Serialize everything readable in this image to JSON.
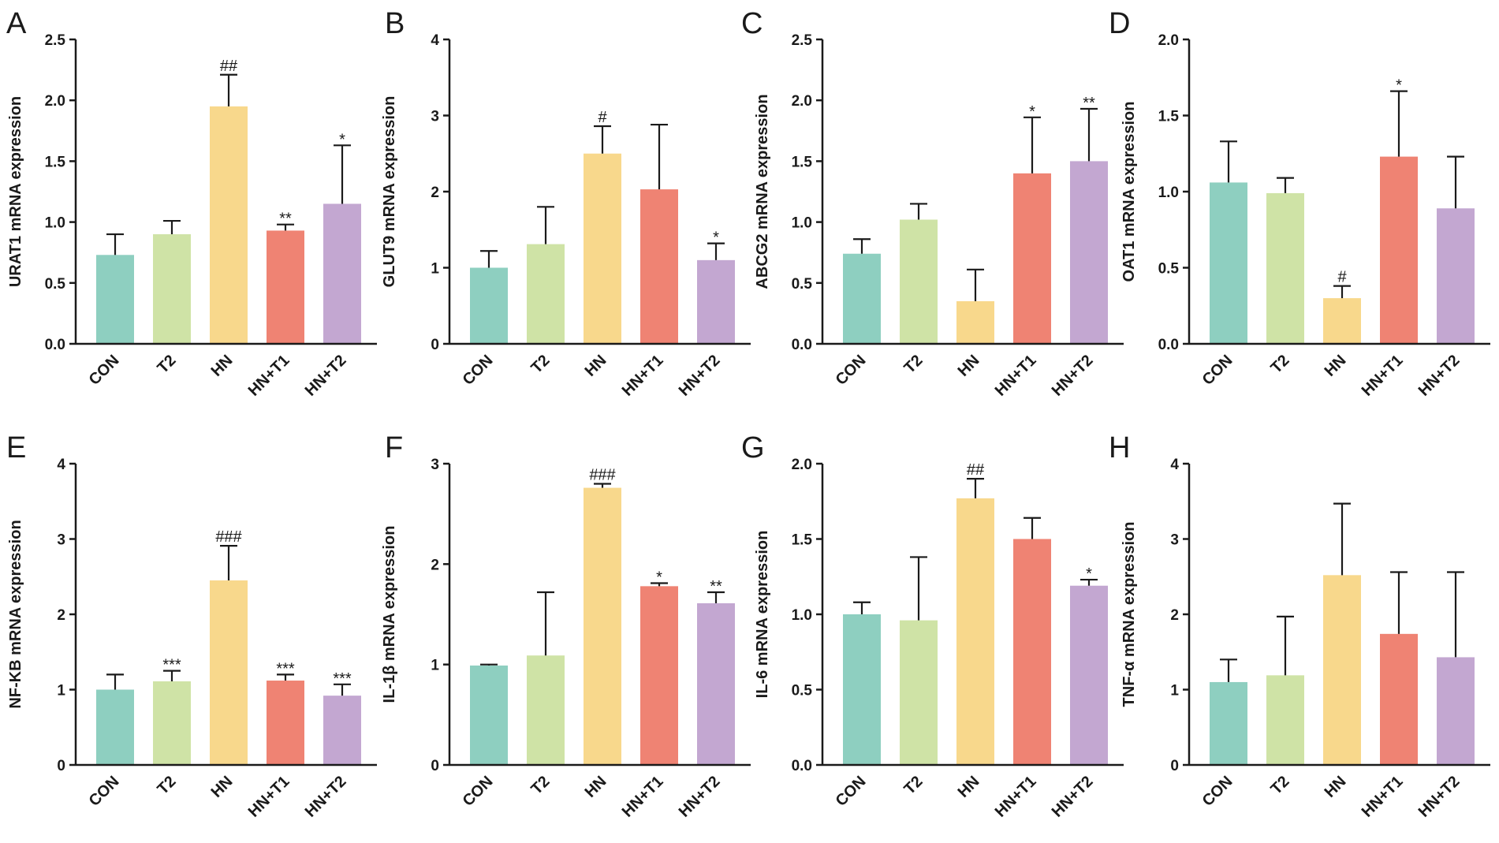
{
  "chart_data": [
    {
      "panel": "A",
      "type": "bar",
      "ylabel": "URAT1 mRNA expression",
      "categories": [
        "CON",
        "T2",
        "HN",
        "HN+T1",
        "HN+T2"
      ],
      "values": [
        0.73,
        0.9,
        1.95,
        0.93,
        1.15
      ],
      "errors": [
        0.17,
        0.11,
        0.26,
        0.05,
        0.48
      ],
      "annotations": [
        "",
        "",
        "##",
        "**",
        "*"
      ],
      "ylim": [
        0,
        2.5
      ],
      "yticks": [
        "0.0",
        "0.5",
        "1.0",
        "1.5",
        "2.0",
        "2.5"
      ]
    },
    {
      "panel": "B",
      "type": "bar",
      "ylabel": "GLUT9 mRNA expression",
      "categories": [
        "CON",
        "T2",
        "HN",
        "HN+T1",
        "HN+T2"
      ],
      "values": [
        1.0,
        1.31,
        2.5,
        2.03,
        1.1
      ],
      "errors": [
        0.22,
        0.49,
        0.36,
        0.85,
        0.22
      ],
      "annotations": [
        "",
        "",
        "#",
        "",
        "*"
      ],
      "ylim": [
        0,
        4
      ],
      "yticks": [
        "0",
        "1",
        "2",
        "3",
        "4"
      ]
    },
    {
      "panel": "C",
      "type": "bar",
      "ylabel": "ABCG2 mRNA expression",
      "categories": [
        "CON",
        "T2",
        "HN",
        "HN+T1",
        "HN+T2"
      ],
      "values": [
        0.74,
        1.02,
        0.35,
        1.4,
        1.5
      ],
      "errors": [
        0.12,
        0.13,
        0.26,
        0.46,
        0.43
      ],
      "annotations": [
        "",
        "",
        "",
        "*",
        "**"
      ],
      "ylim": [
        0,
        2.5
      ],
      "yticks": [
        "0.0",
        "0.5",
        "1.0",
        "1.5",
        "2.0",
        "2.5"
      ]
    },
    {
      "panel": "D",
      "type": "bar",
      "ylabel": "OAT1 mRNA expression",
      "categories": [
        "CON",
        "T2",
        "HN",
        "HN+T1",
        "HN+T2"
      ],
      "values": [
        1.06,
        0.99,
        0.3,
        1.23,
        0.89
      ],
      "errors": [
        0.27,
        0.1,
        0.08,
        0.43,
        0.34
      ],
      "annotations": [
        "",
        "",
        "#",
        "*",
        ""
      ],
      "ylim": [
        0,
        2.0
      ],
      "yticks": [
        "0.0",
        "0.5",
        "1.0",
        "1.5",
        "2.0"
      ]
    },
    {
      "panel": "E",
      "type": "bar",
      "ylabel": "NF-KB mRNA expression",
      "categories": [
        "CON",
        "T2",
        "HN",
        "HN+T1",
        "HN+T2"
      ],
      "values": [
        1.0,
        1.11,
        2.45,
        1.12,
        0.92
      ],
      "errors": [
        0.2,
        0.14,
        0.46,
        0.08,
        0.15
      ],
      "annotations": [
        "",
        "***",
        "###",
        "***",
        "***"
      ],
      "ylim": [
        0,
        4
      ],
      "yticks": [
        "0",
        "1",
        "2",
        "3",
        "4"
      ]
    },
    {
      "panel": "F",
      "type": "bar",
      "ylabel": "IL-1β mRNA expression",
      "categories": [
        "CON",
        "T2",
        "HN",
        "HN+T1",
        "HN+T2"
      ],
      "values": [
        0.99,
        1.09,
        2.76,
        1.78,
        1.61
      ],
      "errors": [
        0.01,
        0.63,
        0.04,
        0.03,
        0.11
      ],
      "annotations": [
        "",
        "",
        "###",
        "*",
        "**"
      ],
      "ylim": [
        0,
        3
      ],
      "yticks": [
        "0",
        "1",
        "2",
        "3"
      ]
    },
    {
      "panel": "G",
      "type": "bar",
      "ylabel": "IL-6 mRNA expression",
      "categories": [
        "CON",
        "T2",
        "HN",
        "HN+T1",
        "HN+T2"
      ],
      "values": [
        1.0,
        0.96,
        1.77,
        1.5,
        1.19
      ],
      "errors": [
        0.08,
        0.42,
        0.13,
        0.14,
        0.04
      ],
      "annotations": [
        "",
        "",
        "##",
        "",
        "*"
      ],
      "ylim": [
        0,
        2.0
      ],
      "yticks": [
        "0.0",
        "0.5",
        "1.0",
        "1.5",
        "2.0"
      ]
    },
    {
      "panel": "H",
      "type": "bar",
      "ylabel": "TNF-α mRNA expression",
      "categories": [
        "CON",
        "T2",
        "HN",
        "HN+T1",
        "HN+T2"
      ],
      "values": [
        1.1,
        1.19,
        2.52,
        1.74,
        1.43
      ],
      "errors": [
        0.3,
        0.78,
        0.95,
        0.82,
        1.13
      ],
      "annotations": [
        "",
        "",
        "",
        "",
        ""
      ],
      "ylim": [
        0,
        4
      ],
      "yticks": [
        "0",
        "1",
        "2",
        "3",
        "4"
      ]
    }
  ],
  "colors": {
    "bars": [
      "#8ecfc0",
      "#cfe3a6",
      "#f8d88c",
      "#ef8373",
      "#c3a7d1"
    ],
    "axis": "#1a1a1a"
  }
}
